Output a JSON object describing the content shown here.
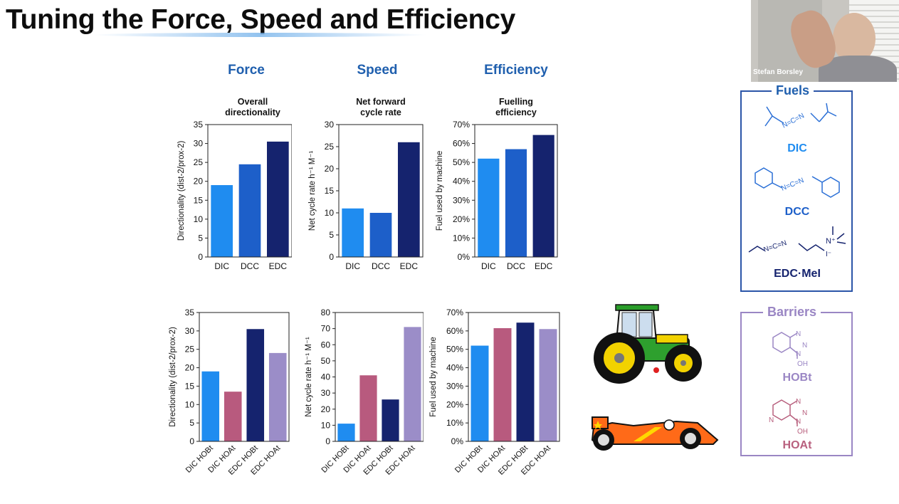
{
  "slide": {
    "title": "Tuning the Force, Speed and Efficiency",
    "columns": [
      "Force",
      "Speed",
      "Efficiency"
    ],
    "subtitles": [
      [
        "Overall",
        "directionality"
      ],
      [
        "Net forward",
        "cycle rate"
      ],
      [
        "Fuelling",
        "efficiency"
      ]
    ]
  },
  "webcam": {
    "name": "Stefan Borsley"
  },
  "fuels": {
    "title": "Fuels",
    "items": [
      "DIC",
      "DCC",
      "EDC·MeI"
    ],
    "color": "#2a6fd6"
  },
  "barriers": {
    "title": "Barriers",
    "items": [
      "HOBt",
      "HOAt"
    ],
    "color": "#9a86c4",
    "hoat_color": "#b8607e"
  },
  "chem_text": {
    "n_c_n": "N=C=N",
    "iodide": "I⁻",
    "ammonium": "N⁺",
    "ring_n": "N",
    "hydroxyl": "OH"
  },
  "colors": {
    "DIC": "#1f8cf0",
    "DCC": "#1d5fc9",
    "EDC": "#15236e",
    "DIC HOAt": "#b85a7e",
    "EDC HOAt": "#9b8dc8"
  },
  "chart_data": [
    {
      "type": "bar",
      "ylabel": "Directionality (dist-2/prox-2)",
      "categories": [
        "DIC",
        "DCC",
        "EDC"
      ],
      "values": [
        19,
        24.5,
        30.5
      ],
      "ylim": [
        0,
        35
      ],
      "yticks": [
        "0",
        "5",
        "10",
        "15",
        "20",
        "25",
        "30",
        "35"
      ]
    },
    {
      "type": "bar",
      "ylabel": "Net cycle rate h⁻¹ M⁻¹",
      "categories": [
        "DIC",
        "DCC",
        "EDC"
      ],
      "values": [
        11,
        10,
        26
      ],
      "ylim": [
        0,
        30
      ],
      "yticks": [
        "0",
        "5",
        "10",
        "15",
        "20",
        "25",
        "30"
      ]
    },
    {
      "type": "bar",
      "ylabel": "Fuel used by machine",
      "categories": [
        "DIC",
        "DCC",
        "EDC"
      ],
      "values": [
        52,
        57,
        64.5
      ],
      "ylim": [
        0,
        70
      ],
      "yticks": [
        "0%",
        "10%",
        "20%",
        "30%",
        "40%",
        "50%",
        "60%",
        "70%"
      ]
    },
    {
      "type": "bar",
      "ylabel": "Directionality (dist-2/prox-2)",
      "categories": [
        "DIC HOBt",
        "DIC HOAt",
        "EDC HOBt",
        "EDC HOAt"
      ],
      "values": [
        19,
        13.5,
        30.5,
        24
      ],
      "ylim": [
        0,
        35
      ],
      "yticks": [
        "0",
        "5",
        "10",
        "15",
        "20",
        "25",
        "30",
        "35"
      ]
    },
    {
      "type": "bar",
      "ylabel": "Net cycle rate h⁻¹ M⁻¹",
      "categories": [
        "DIC HOBt",
        "DIC HOAt",
        "EDC HOBt",
        "EDC HOAt"
      ],
      "values": [
        11,
        41,
        26,
        71
      ],
      "ylim": [
        0,
        80
      ],
      "yticks": [
        "0",
        "10",
        "20",
        "30",
        "40",
        "50",
        "60",
        "70",
        "80"
      ]
    },
    {
      "type": "bar",
      "ylabel": "Fuel used by machine",
      "categories": [
        "DIC HOBt",
        "DIC HOAt",
        "EDC HOBt",
        "EDC HOAt"
      ],
      "values": [
        52,
        61.5,
        64.5,
        61
      ],
      "ylim": [
        0,
        70
      ],
      "yticks": [
        "0%",
        "10%",
        "20%",
        "30%",
        "40%",
        "50%",
        "60%",
        "70%"
      ]
    }
  ]
}
